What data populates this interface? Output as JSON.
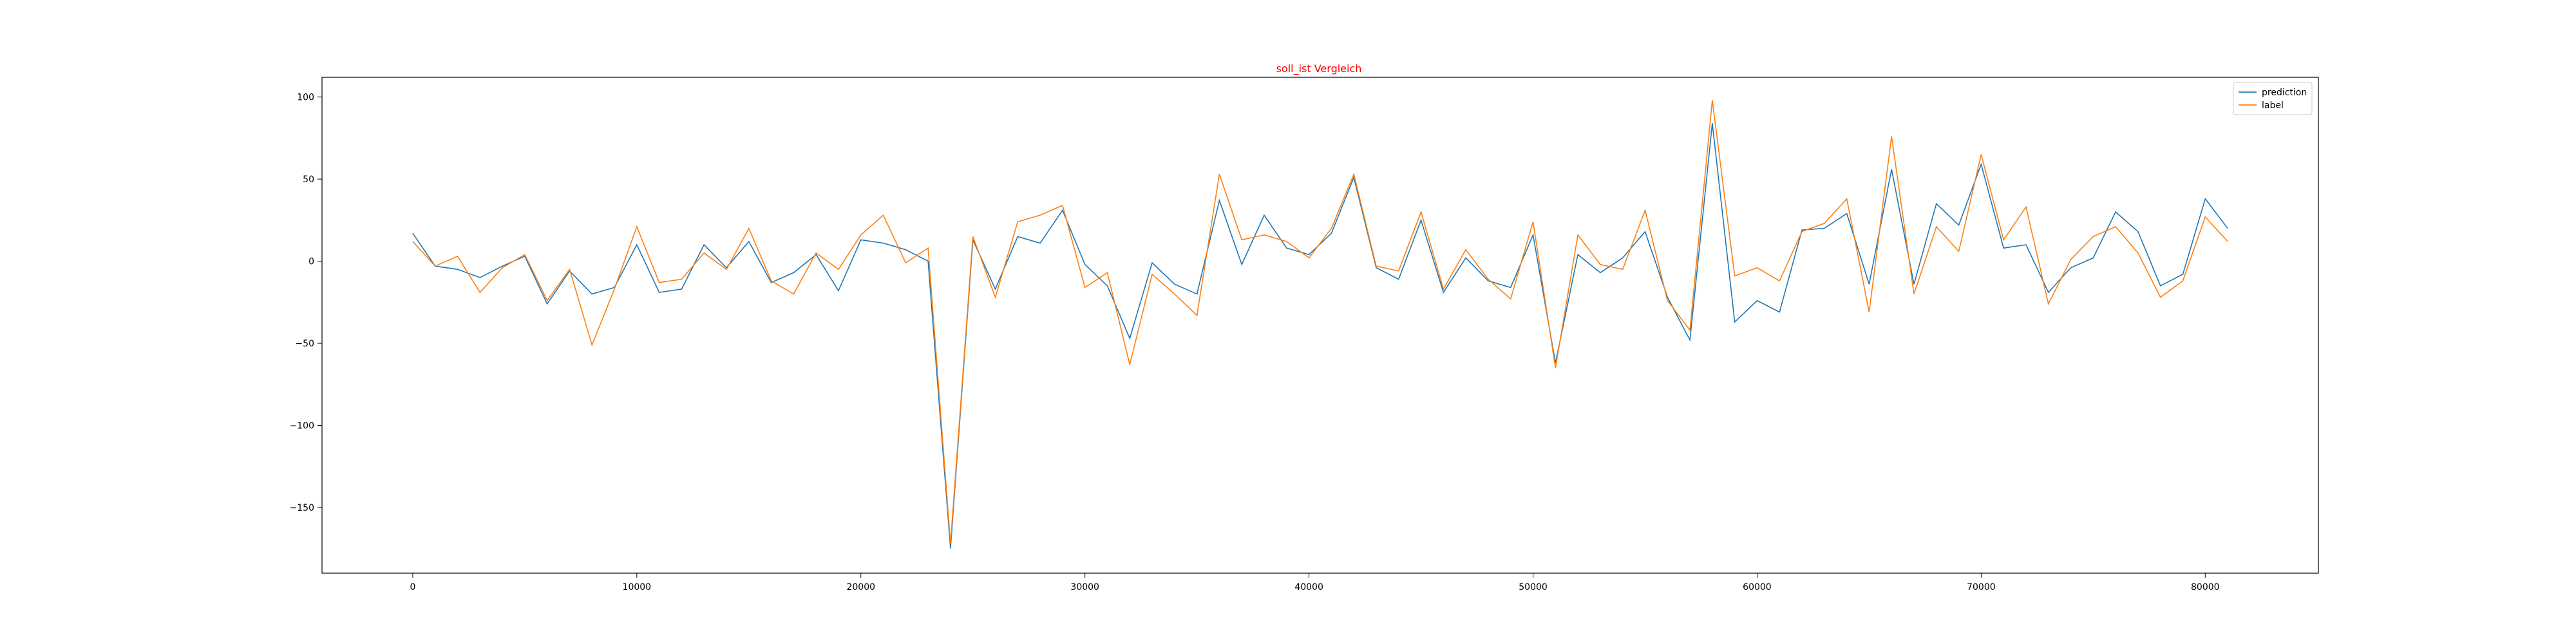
{
  "chart_data": {
    "type": "line",
    "title": "soll_ist Vergleich",
    "title_color": "#ff0000",
    "xlabel": "",
    "ylabel": "",
    "xlim": [
      -4050,
      85050
    ],
    "ylim": [
      -190,
      112
    ],
    "x_ticks": [
      0,
      10000,
      20000,
      30000,
      40000,
      50000,
      60000,
      70000,
      80000
    ],
    "y_ticks": [
      100,
      50,
      0,
      -50,
      -100,
      -150
    ],
    "y_tick_labels": [
      "100",
      "50",
      "0",
      "−100",
      "−150"
    ],
    "y_tick_labels_full": [
      "100",
      "50",
      "0",
      "−50",
      "−100",
      "−150"
    ],
    "grid": false,
    "legend_position": "top-right",
    "x": [
      0,
      1000,
      2000,
      3000,
      4000,
      5000,
      6000,
      7000,
      8000,
      9000,
      10000,
      11000,
      12000,
      13000,
      14000,
      15000,
      16000,
      17000,
      18000,
      19000,
      20000,
      21000,
      22000,
      23000,
      24000,
      25000,
      26000,
      27000,
      28000,
      29000,
      30000,
      31000,
      32000,
      33000,
      34000,
      35000,
      36000,
      37000,
      38000,
      39000,
      40000,
      41000,
      42000,
      43000,
      44000,
      45000,
      46000,
      47000,
      48000,
      49000,
      50000,
      51000,
      52000,
      53000,
      54000,
      55000,
      56000,
      57000,
      58000,
      59000,
      60000,
      61000,
      62000,
      63000,
      64000,
      65000,
      66000,
      67000,
      68000,
      69000,
      70000,
      71000,
      72000,
      73000,
      74000,
      75000,
      76000,
      77000,
      78000,
      79000,
      80000,
      81000
    ],
    "series": [
      {
        "name": "prediction",
        "color": "#1f77b4",
        "values": [
          17,
          -3,
          -5,
          -10,
          -3,
          3,
          -26,
          -6,
          -20,
          -16,
          10,
          -19,
          -17,
          10,
          -4,
          12,
          -13,
          -7,
          4,
          -18,
          13,
          11,
          7,
          0,
          -175,
          13,
          -17,
          15,
          11,
          31,
          -2,
          -15,
          -47,
          -1,
          -14,
          -20,
          37,
          -2,
          28,
          8,
          4,
          17,
          51,
          -4,
          -11,
          25,
          -19,
          2,
          -12,
          -16,
          16,
          -62,
          4,
          -7,
          2,
          18,
          -22,
          -48,
          84,
          -37,
          -24,
          -31,
          19,
          20,
          29,
          -14,
          56,
          -14,
          35,
          22,
          59,
          8,
          10,
          -19,
          -4,
          2,
          30,
          18,
          -15,
          -8,
          38,
          20
        ]
      },
      {
        "name": "label",
        "color": "#ff7f0e",
        "values": [
          12,
          -3,
          3,
          -19,
          -4,
          4,
          -24,
          -5,
          -51,
          -17,
          21,
          -13,
          -11,
          5,
          -5,
          20,
          -12,
          -20,
          5,
          -5,
          16,
          28,
          -1,
          8,
          -172,
          15,
          -22,
          24,
          28,
          34,
          -16,
          -7,
          -63,
          -8,
          -20,
          -33,
          53,
          13,
          16,
          12,
          2,
          20,
          53,
          -3,
          -6,
          30,
          -17,
          7,
          -11,
          -23,
          24,
          -65,
          16,
          -2,
          -5,
          31,
          -24,
          -42,
          98,
          -9,
          -4,
          -12,
          18,
          23,
          38,
          -31,
          76,
          -20,
          21,
          6,
          65,
          13,
          33,
          -26,
          1,
          15,
          21,
          5,
          -22,
          -12,
          27,
          12
        ]
      }
    ]
  }
}
